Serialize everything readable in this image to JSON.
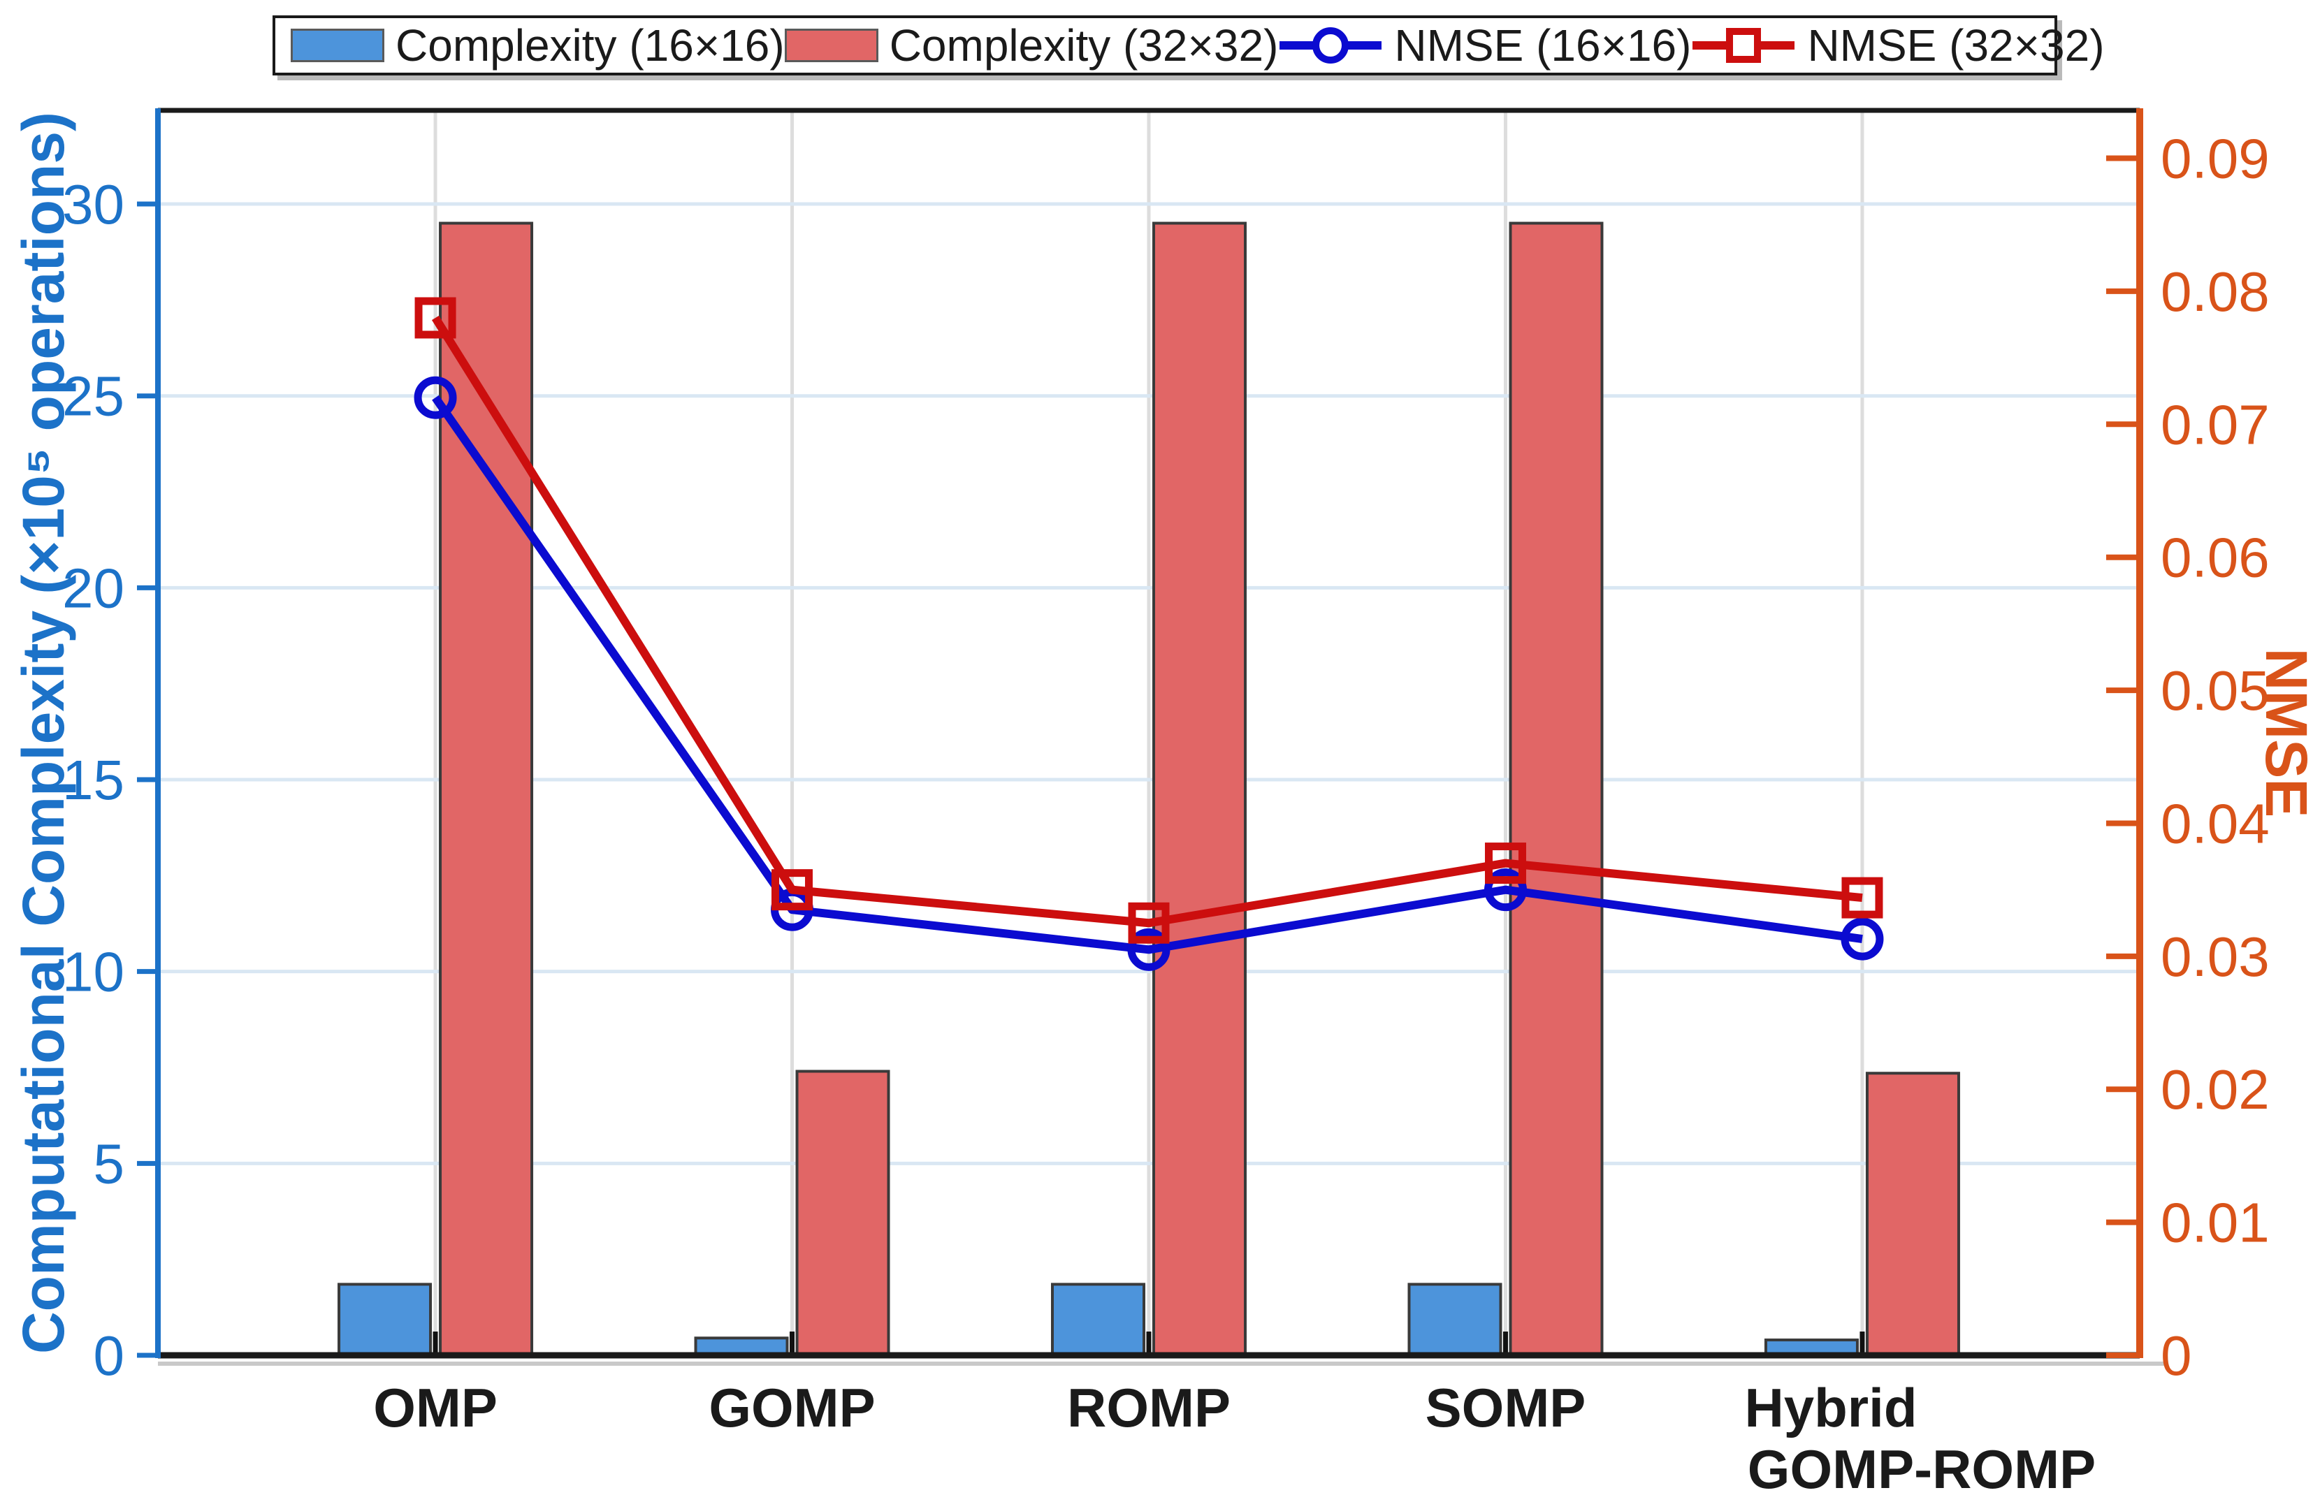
{
  "chart_data": {
    "type": "combo-bar-line",
    "title": "",
    "categories": [
      {
        "lines": [
          "OMP"
        ]
      },
      {
        "lines": [
          "GOMP"
        ]
      },
      {
        "lines": [
          "ROMP"
        ]
      },
      {
        "lines": [
          "SOMP"
        ]
      },
      {
        "lines": [
          "Hybrid",
          "GOMP-ROMP"
        ]
      }
    ],
    "series": [
      {
        "name": "Complexity (16×16)",
        "type": "bar",
        "axis": "left",
        "marker": "none",
        "color": "#4D94DB",
        "edge_color": "#3A3A3A",
        "values": [
          1.85,
          0.45,
          1.85,
          1.85,
          0.4
        ]
      },
      {
        "name": "Complexity (32×32)",
        "type": "bar",
        "axis": "left",
        "marker": "none",
        "color": "#E16666",
        "edge_color": "#3A3A3A",
        "values": [
          29.5,
          7.4,
          29.5,
          29.5,
          7.35
        ]
      },
      {
        "name": "NMSE (16×16)",
        "type": "line",
        "axis": "right",
        "marker": "circle",
        "color": "#0B0BD0",
        "values": [
          0.072,
          0.0335,
          0.0305,
          0.035,
          0.0313
        ]
      },
      {
        "name": "NMSE (32×32)",
        "type": "line",
        "axis": "right",
        "marker": "square",
        "color": "#CC0E0E",
        "values": [
          0.078,
          0.035,
          0.0325,
          0.037,
          0.0344
        ]
      }
    ],
    "left_axis": {
      "title": "Computational Complexity (×10⁵ operations)",
      "color": "#1C72C8",
      "ylim": [
        0,
        32.44
      ],
      "ticks": [
        {
          "v": 0,
          "label": "0"
        },
        {
          "v": 5,
          "label": "5"
        },
        {
          "v": 10,
          "label": "10"
        },
        {
          "v": 15,
          "label": "15"
        },
        {
          "v": 20,
          "label": "20"
        },
        {
          "v": 25,
          "label": "25"
        },
        {
          "v": 30,
          "label": "30"
        }
      ]
    },
    "right_axis": {
      "title": "NMSE",
      "color": "#D95319",
      "ylim": [
        0,
        0.0936
      ],
      "ticks": [
        {
          "v": 0,
          "label": "0"
        },
        {
          "v": 0.01,
          "label": "0.01"
        },
        {
          "v": 0.02,
          "label": "0.02"
        },
        {
          "v": 0.03,
          "label": "0.03"
        },
        {
          "v": 0.04,
          "label": "0.04"
        },
        {
          "v": 0.05,
          "label": "0.05"
        },
        {
          "v": 0.06,
          "label": "0.06"
        },
        {
          "v": 0.07,
          "label": "0.07"
        },
        {
          "v": 0.08,
          "label": "0.08"
        },
        {
          "v": 0.09,
          "label": "0.09"
        }
      ]
    },
    "grid": true,
    "legend_position": "top",
    "colors": {
      "frame": "#1A1A1A",
      "grid_horizontal": "#D9E7F3",
      "grid_vertical": "#DDDDDD",
      "x_label_color": "#1A1A1A",
      "axis_shadow": "#C9C9C9"
    }
  }
}
